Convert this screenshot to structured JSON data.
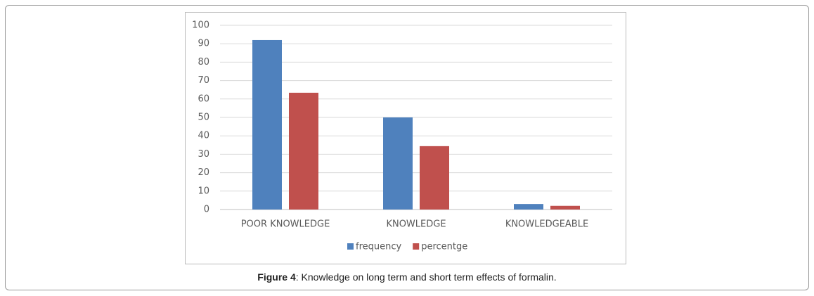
{
  "chart_data": {
    "type": "bar",
    "categories": [
      "POOR KNOWLEDGE",
      "KNOWLEDGE",
      "KNOWLEDGEABLE"
    ],
    "series": [
      {
        "name": "frequency",
        "color": "#4f81bd",
        "values": [
          92,
          50,
          3
        ]
      },
      {
        "name": "percentge",
        "color": "#c0504d",
        "values": [
          63.4,
          34.4,
          2
        ]
      }
    ],
    "ylim": [
      0,
      100
    ],
    "yticks": [
      0,
      10,
      20,
      30,
      40,
      50,
      60,
      70,
      80,
      90,
      100
    ],
    "grid": true,
    "legend": "bottom"
  },
  "caption": {
    "label": "Figure 4",
    "text": ": Knowledge on long term and short term effects of formalin."
  }
}
